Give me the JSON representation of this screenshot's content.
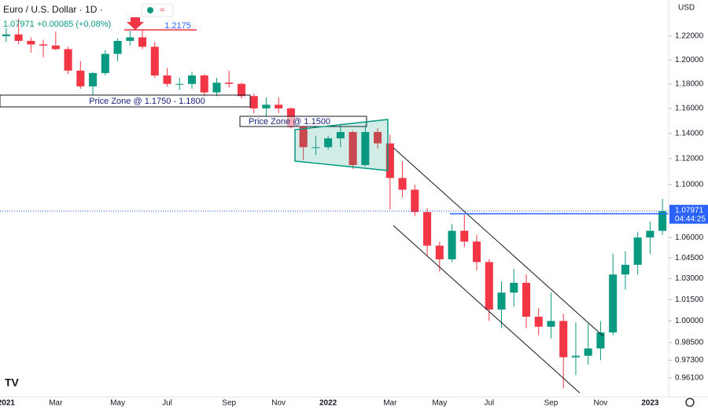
{
  "chart_data": {
    "type": "candlestick",
    "symbol": "Euro / U.S. Dollar · 1D ·",
    "change": "+0.00085 (+0.08%)",
    "last_price": {
      "value": 1.07971,
      "label": "1.07971"
    },
    "countdown": "04:44:25",
    "currency": "USD",
    "annotations": [
      "Price Zone @ 1.1750 - 1.1800",
      "Price Zone @ 1.1500",
      "1.2175"
    ],
    "categories": [
      "2021",
      null,
      null,
      null,
      "Mar",
      null,
      null,
      null,
      null,
      "May",
      null,
      null,
      null,
      "Jul",
      null,
      null,
      null,
      null,
      "Sep",
      null,
      null,
      null,
      "Nov",
      null,
      null,
      null,
      "2022",
      null,
      null,
      null,
      null,
      "Mar",
      null,
      null,
      null,
      "May",
      null,
      null,
      null,
      "Jul",
      null,
      null,
      null,
      null,
      "Sep",
      null,
      null,
      null,
      "Nov",
      null,
      null,
      null,
      "2023",
      null
    ],
    "open": [
      1.22,
      1.2215,
      1.216,
      1.213,
      1.212,
      1.209,
      1.191,
      1.178,
      1.189,
      1.205,
      1.216,
      1.219,
      1.211,
      1.187,
      1.18,
      1.18,
      1.187,
      1.173,
      1.181,
      1.18,
      1.17,
      1.16,
      1.163,
      1.16,
      1.145,
      1.129,
      1.129,
      1.136,
      1.141,
      1.115,
      1.141,
      1.132,
      1.105,
      1.096,
      1.079,
      1.054,
      1.044,
      1.065,
      1.057,
      1.042,
      1.008,
      1.02,
      1.027,
      1.003,
      0.996,
      1.0,
      0.975,
      0.976,
      0.981,
      0.992,
      1.033,
      1.04,
      1.06,
      1.065
    ],
    "high": [
      1.227,
      1.235,
      1.219,
      1.217,
      1.224,
      1.211,
      1.199,
      1.19,
      1.208,
      1.218,
      1.2245,
      1.2255,
      1.215,
      1.193,
      1.185,
      1.19,
      1.188,
      1.185,
      1.191,
      1.181,
      1.172,
      1.169,
      1.169,
      1.161,
      1.146,
      1.138,
      1.138,
      1.148,
      1.142,
      1.149,
      1.144,
      1.139,
      1.118,
      1.1,
      1.082,
      1.057,
      1.07,
      1.077,
      1.062,
      1.044,
      1.028,
      1.037,
      1.033,
      1.009,
      1.02,
      1.005,
      0.999,
      0.998,
      1.0,
      1.048,
      1.05,
      1.064,
      1.072,
      1.089
    ],
    "low": [
      1.215,
      1.213,
      1.206,
      1.202,
      1.208,
      1.188,
      1.176,
      1.1705,
      1.187,
      1.199,
      1.212,
      1.209,
      1.185,
      1.178,
      1.175,
      1.176,
      1.17,
      1.17,
      1.177,
      1.168,
      1.156,
      1.153,
      1.156,
      1.144,
      1.119,
      1.123,
      1.127,
      1.129,
      1.112,
      1.114,
      1.128,
      1.081,
      1.09,
      1.076,
      1.047,
      1.035,
      1.042,
      1.053,
      1.036,
      1.0,
      0.995,
      1.01,
      0.995,
      0.99,
      0.988,
      0.954,
      0.963,
      0.97,
      0.973,
      0.99,
      1.022,
      1.033,
      1.048,
      1.062
    ],
    "close": [
      1.2215,
      1.216,
      1.213,
      1.212,
      1.209,
      1.191,
      1.178,
      1.189,
      1.205,
      1.216,
      1.219,
      1.211,
      1.187,
      1.18,
      1.18,
      1.187,
      1.173,
      1.181,
      1.18,
      1.17,
      1.16,
      1.163,
      1.16,
      1.145,
      1.129,
      1.129,
      1.136,
      1.141,
      1.115,
      1.141,
      1.132,
      1.105,
      1.096,
      1.079,
      1.054,
      1.044,
      1.065,
      1.057,
      1.042,
      1.008,
      1.02,
      1.027,
      1.003,
      0.996,
      1.0,
      0.975,
      0.976,
      0.981,
      0.992,
      1.033,
      1.04,
      1.06,
      1.065,
      1.07971
    ],
    "up_color": "#089981",
    "down_color": "#f23645",
    "log": true,
    "ylim": [
      0.9484,
      1.2512
    ],
    "yticks": [
      {
        "value": 1.22,
        "label": "1.22000"
      },
      {
        "value": 1.2,
        "label": "1.20000"
      },
      {
        "value": 1.18,
        "label": "1.18000"
      },
      {
        "value": 1.16,
        "label": "1.16000"
      },
      {
        "value": 1.14,
        "label": "1.14000"
      },
      {
        "value": 1.12,
        "label": "1.12000"
      },
      {
        "value": 1.1,
        "label": "1.10000"
      },
      {
        "value": 1.06,
        "label": "1.06000"
      },
      {
        "value": 1.045,
        "label": "1.04500"
      },
      {
        "value": 1.03,
        "label": "1.03000"
      },
      {
        "value": 1.015,
        "label": "1.01500"
      },
      {
        "value": 1,
        "label": "1.00000"
      },
      {
        "value": 0.985,
        "label": "0.98500"
      },
      {
        "value": 0.973,
        "label": "0.97300"
      },
      {
        "value": 0.961,
        "label": "0.96100"
      }
    ]
  }
}
